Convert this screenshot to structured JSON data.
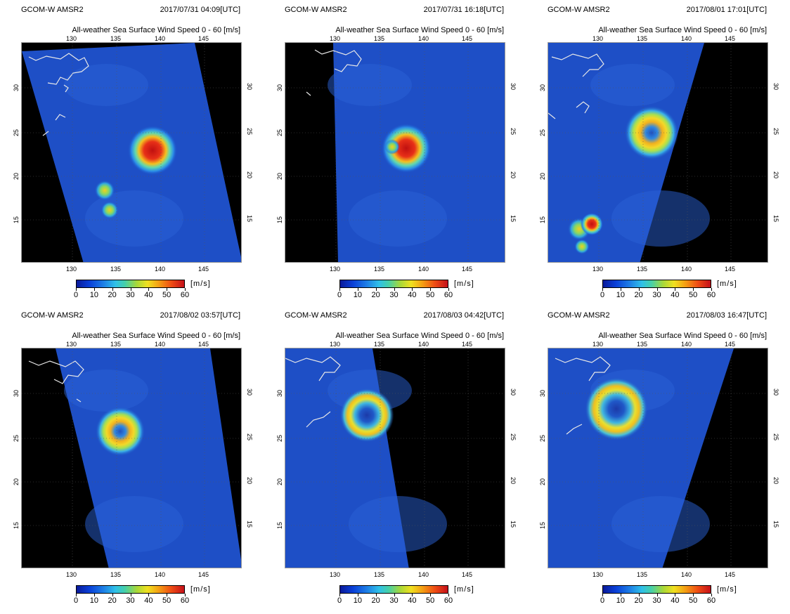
{
  "colorbar": {
    "ticks": [
      "0",
      "10",
      "20",
      "30",
      "40",
      "50",
      "60"
    ],
    "unit": "[m/s]"
  },
  "panels": [
    {
      "satellite": "GCOM-W  AMSR2",
      "datetime": "2017/07/31  04:09[UTC]",
      "subtitle": "All-weather Sea Surface Wind Speed     0  - 60 [m/s]",
      "lon_top": [
        "130",
        "135",
        "140",
        "145"
      ],
      "lon_bottom": [
        "130",
        "135",
        "140",
        "145"
      ],
      "lat_left": [
        "30",
        "25",
        "20",
        "15"
      ],
      "lat_right": [
        "30",
        "25",
        "20",
        "15"
      ]
    },
    {
      "satellite": "GCOM-W  AMSR2",
      "datetime": "2017/07/31  16:18[UTC]",
      "subtitle": "All-weather Sea Surface Wind Speed     0  - 60 [m/s]",
      "lon_top": [
        "130",
        "135",
        "140",
        "145"
      ],
      "lon_bottom": [
        "130",
        "135",
        "140",
        "145"
      ],
      "lat_left": [
        "30",
        "25",
        "20",
        "15"
      ],
      "lat_right": [
        "30",
        "25",
        "20",
        "15"
      ]
    },
    {
      "satellite": "GCOM-W  AMSR2",
      "datetime": "2017/08/01  17:01[UTC]",
      "subtitle": "All-weather Sea Surface Wind Speed     0  - 60 [m/s]",
      "lon_top": [
        "130",
        "135",
        "140",
        "145"
      ],
      "lon_bottom": [
        "130",
        "135",
        "140",
        "145"
      ],
      "lat_left": [
        "30",
        "25",
        "20",
        "15"
      ],
      "lat_right": [
        "30",
        "25",
        "20",
        "15"
      ]
    },
    {
      "satellite": "GCOM-W  AMSR2",
      "datetime": "2017/08/02  03:57[UTC]",
      "subtitle": "All-weather Sea Surface Wind Speed     0  - 60 [m/s]",
      "lon_top": [
        "130",
        "135",
        "140",
        "145"
      ],
      "lon_bottom": [
        "130",
        "135",
        "140",
        "145"
      ],
      "lat_left": [
        "30",
        "25",
        "20",
        "15"
      ],
      "lat_right": [
        "30",
        "25",
        "20",
        "15"
      ]
    },
    {
      "satellite": "GCOM-W  AMSR2",
      "datetime": "2017/08/03  04:42[UTC]",
      "subtitle": "All-weather Sea Surface Wind Speed     0  - 60 [m/s]",
      "lon_top": [
        "130",
        "135",
        "140",
        "145"
      ],
      "lon_bottom": [
        "130",
        "135",
        "140",
        "145"
      ],
      "lat_left": [
        "30",
        "25",
        "20",
        "15"
      ],
      "lat_right": [
        "30",
        "25",
        "20",
        "15"
      ]
    },
    {
      "satellite": "GCOM-W  AMSR2",
      "datetime": "2017/08/03  16:47[UTC]",
      "subtitle": "All-weather Sea Surface Wind Speed     0  - 60 [m/s]",
      "lon_top": [
        "130",
        "135",
        "140",
        "145"
      ],
      "lon_bottom": [
        "130",
        "135",
        "140",
        "145"
      ],
      "lat_left": [
        "30",
        "25",
        "20",
        "15"
      ],
      "lat_right": [
        "30",
        "25",
        "20",
        "15"
      ]
    }
  ]
}
